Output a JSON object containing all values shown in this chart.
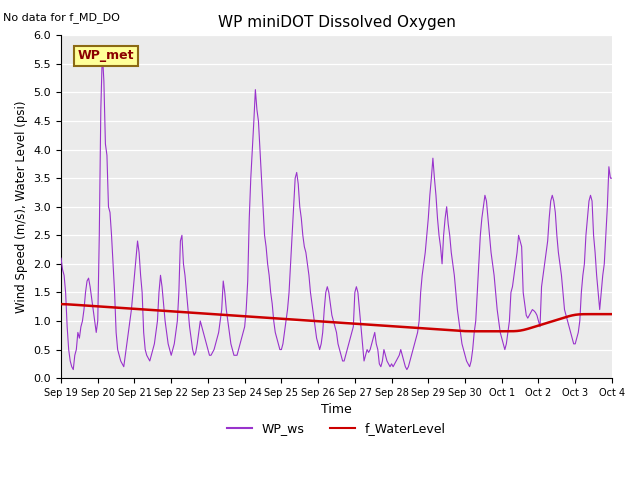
{
  "title": "WP miniDOT Dissolved Oxygen",
  "annotation_top_left": "No data for f_MD_DO",
  "legend_box_label": "WP_met",
  "xlabel": "Time",
  "ylabel": "Wind Speed (m/s), Water Level (psi)",
  "ylim": [
    0.0,
    6.0
  ],
  "yticks": [
    0.0,
    0.5,
    1.0,
    1.5,
    2.0,
    2.5,
    3.0,
    3.5,
    4.0,
    4.5,
    5.0,
    5.5,
    6.0
  ],
  "bg_color": "#ebebeb",
  "line_ws_color": "#9933CC",
  "line_wl_color": "#CC0000",
  "legend_ws": "WP_ws",
  "legend_wl": "f_WaterLevel",
  "x_tick_labels": [
    "Sep 19",
    "Sep 20",
    "Sep 21",
    "Sep 22",
    "Sep 23",
    "Sep 24",
    "Sep 25",
    "Sep 26",
    "Sep 27",
    "Sep 28",
    "Sep 29",
    "Sep 30",
    "Oct 1",
    "Oct 2",
    "Oct 3",
    "Oct 4"
  ],
  "x_tick_positions": [
    0,
    24,
    48,
    72,
    96,
    120,
    144,
    168,
    192,
    216,
    240,
    264,
    288,
    312,
    336,
    360
  ]
}
